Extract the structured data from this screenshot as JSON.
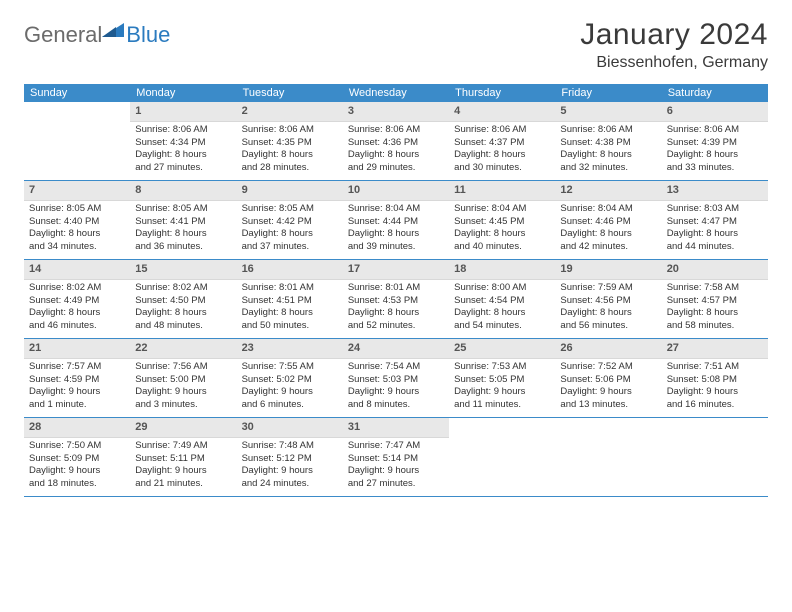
{
  "logo": {
    "text1": "General",
    "text2": "Blue"
  },
  "title": "January 2024",
  "location": "Biessenhofen, Germany",
  "colors": {
    "header_bg": "#3b8bc9",
    "header_text": "#ffffff",
    "daynum_bg": "#e8e8e8",
    "border": "#3b8bc9",
    "logo_gray": "#6b6b6b",
    "logo_blue": "#2b7bbf"
  },
  "day_names": [
    "Sunday",
    "Monday",
    "Tuesday",
    "Wednesday",
    "Thursday",
    "Friday",
    "Saturday"
  ],
  "weeks": [
    [
      {
        "blank": true
      },
      {
        "n": "1",
        "sunrise": "Sunrise: 8:06 AM",
        "sunset": "Sunset: 4:34 PM",
        "day1": "Daylight: 8 hours",
        "day2": "and 27 minutes."
      },
      {
        "n": "2",
        "sunrise": "Sunrise: 8:06 AM",
        "sunset": "Sunset: 4:35 PM",
        "day1": "Daylight: 8 hours",
        "day2": "and 28 minutes."
      },
      {
        "n": "3",
        "sunrise": "Sunrise: 8:06 AM",
        "sunset": "Sunset: 4:36 PM",
        "day1": "Daylight: 8 hours",
        "day2": "and 29 minutes."
      },
      {
        "n": "4",
        "sunrise": "Sunrise: 8:06 AM",
        "sunset": "Sunset: 4:37 PM",
        "day1": "Daylight: 8 hours",
        "day2": "and 30 minutes."
      },
      {
        "n": "5",
        "sunrise": "Sunrise: 8:06 AM",
        "sunset": "Sunset: 4:38 PM",
        "day1": "Daylight: 8 hours",
        "day2": "and 32 minutes."
      },
      {
        "n": "6",
        "sunrise": "Sunrise: 8:06 AM",
        "sunset": "Sunset: 4:39 PM",
        "day1": "Daylight: 8 hours",
        "day2": "and 33 minutes."
      }
    ],
    [
      {
        "n": "7",
        "sunrise": "Sunrise: 8:05 AM",
        "sunset": "Sunset: 4:40 PM",
        "day1": "Daylight: 8 hours",
        "day2": "and 34 minutes."
      },
      {
        "n": "8",
        "sunrise": "Sunrise: 8:05 AM",
        "sunset": "Sunset: 4:41 PM",
        "day1": "Daylight: 8 hours",
        "day2": "and 36 minutes."
      },
      {
        "n": "9",
        "sunrise": "Sunrise: 8:05 AM",
        "sunset": "Sunset: 4:42 PM",
        "day1": "Daylight: 8 hours",
        "day2": "and 37 minutes."
      },
      {
        "n": "10",
        "sunrise": "Sunrise: 8:04 AM",
        "sunset": "Sunset: 4:44 PM",
        "day1": "Daylight: 8 hours",
        "day2": "and 39 minutes."
      },
      {
        "n": "11",
        "sunrise": "Sunrise: 8:04 AM",
        "sunset": "Sunset: 4:45 PM",
        "day1": "Daylight: 8 hours",
        "day2": "and 40 minutes."
      },
      {
        "n": "12",
        "sunrise": "Sunrise: 8:04 AM",
        "sunset": "Sunset: 4:46 PM",
        "day1": "Daylight: 8 hours",
        "day2": "and 42 minutes."
      },
      {
        "n": "13",
        "sunrise": "Sunrise: 8:03 AM",
        "sunset": "Sunset: 4:47 PM",
        "day1": "Daylight: 8 hours",
        "day2": "and 44 minutes."
      }
    ],
    [
      {
        "n": "14",
        "sunrise": "Sunrise: 8:02 AM",
        "sunset": "Sunset: 4:49 PM",
        "day1": "Daylight: 8 hours",
        "day2": "and 46 minutes."
      },
      {
        "n": "15",
        "sunrise": "Sunrise: 8:02 AM",
        "sunset": "Sunset: 4:50 PM",
        "day1": "Daylight: 8 hours",
        "day2": "and 48 minutes."
      },
      {
        "n": "16",
        "sunrise": "Sunrise: 8:01 AM",
        "sunset": "Sunset: 4:51 PM",
        "day1": "Daylight: 8 hours",
        "day2": "and 50 minutes."
      },
      {
        "n": "17",
        "sunrise": "Sunrise: 8:01 AM",
        "sunset": "Sunset: 4:53 PM",
        "day1": "Daylight: 8 hours",
        "day2": "and 52 minutes."
      },
      {
        "n": "18",
        "sunrise": "Sunrise: 8:00 AM",
        "sunset": "Sunset: 4:54 PM",
        "day1": "Daylight: 8 hours",
        "day2": "and 54 minutes."
      },
      {
        "n": "19",
        "sunrise": "Sunrise: 7:59 AM",
        "sunset": "Sunset: 4:56 PM",
        "day1": "Daylight: 8 hours",
        "day2": "and 56 minutes."
      },
      {
        "n": "20",
        "sunrise": "Sunrise: 7:58 AM",
        "sunset": "Sunset: 4:57 PM",
        "day1": "Daylight: 8 hours",
        "day2": "and 58 minutes."
      }
    ],
    [
      {
        "n": "21",
        "sunrise": "Sunrise: 7:57 AM",
        "sunset": "Sunset: 4:59 PM",
        "day1": "Daylight: 9 hours",
        "day2": "and 1 minute."
      },
      {
        "n": "22",
        "sunrise": "Sunrise: 7:56 AM",
        "sunset": "Sunset: 5:00 PM",
        "day1": "Daylight: 9 hours",
        "day2": "and 3 minutes."
      },
      {
        "n": "23",
        "sunrise": "Sunrise: 7:55 AM",
        "sunset": "Sunset: 5:02 PM",
        "day1": "Daylight: 9 hours",
        "day2": "and 6 minutes."
      },
      {
        "n": "24",
        "sunrise": "Sunrise: 7:54 AM",
        "sunset": "Sunset: 5:03 PM",
        "day1": "Daylight: 9 hours",
        "day2": "and 8 minutes."
      },
      {
        "n": "25",
        "sunrise": "Sunrise: 7:53 AM",
        "sunset": "Sunset: 5:05 PM",
        "day1": "Daylight: 9 hours",
        "day2": "and 11 minutes."
      },
      {
        "n": "26",
        "sunrise": "Sunrise: 7:52 AM",
        "sunset": "Sunset: 5:06 PM",
        "day1": "Daylight: 9 hours",
        "day2": "and 13 minutes."
      },
      {
        "n": "27",
        "sunrise": "Sunrise: 7:51 AM",
        "sunset": "Sunset: 5:08 PM",
        "day1": "Daylight: 9 hours",
        "day2": "and 16 minutes."
      }
    ],
    [
      {
        "n": "28",
        "sunrise": "Sunrise: 7:50 AM",
        "sunset": "Sunset: 5:09 PM",
        "day1": "Daylight: 9 hours",
        "day2": "and 18 minutes."
      },
      {
        "n": "29",
        "sunrise": "Sunrise: 7:49 AM",
        "sunset": "Sunset: 5:11 PM",
        "day1": "Daylight: 9 hours",
        "day2": "and 21 minutes."
      },
      {
        "n": "30",
        "sunrise": "Sunrise: 7:48 AM",
        "sunset": "Sunset: 5:12 PM",
        "day1": "Daylight: 9 hours",
        "day2": "and 24 minutes."
      },
      {
        "n": "31",
        "sunrise": "Sunrise: 7:47 AM",
        "sunset": "Sunset: 5:14 PM",
        "day1": "Daylight: 9 hours",
        "day2": "and 27 minutes."
      },
      {
        "blank": true
      },
      {
        "blank": true
      },
      {
        "blank": true
      }
    ]
  ]
}
